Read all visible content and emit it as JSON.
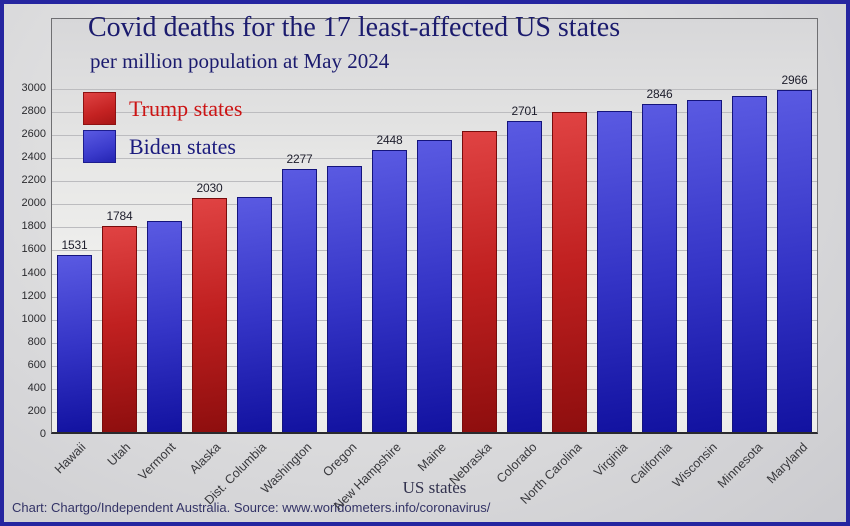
{
  "title": "Covid deaths for the 17 least-affected US states",
  "subtitle": "per million population at May 2024",
  "legend": {
    "trump_label": "Trump states",
    "biden_label": "Biden states",
    "trump_color": "#c42222",
    "biden_color": "#3b3bcc"
  },
  "x_axis_title": "US states",
  "caption": "Chart: Chartgo/Independent Australia. Source: www.worldometers.info/coronavirus/",
  "chart_data": {
    "type": "bar",
    "title": "Covid deaths for the 17 least-affected US states",
    "subtitle": "per million population at May 2024",
    "xlabel": "US states",
    "ylabel": "",
    "ylim": [
      0,
      3000
    ],
    "ytick_step": 200,
    "yticks": [
      0,
      200,
      400,
      600,
      800,
      1000,
      1200,
      1400,
      1600,
      1800,
      2000,
      2200,
      2400,
      2600,
      2800,
      3000
    ],
    "grid": true,
    "legend_position": "top-left-inside",
    "categories": [
      "Hawaii",
      "Utah",
      "Vermont",
      "Alaska",
      "Dist. Columbia",
      "Washington",
      "Oregon",
      "New Hampshire",
      "Maine",
      "Nebraska",
      "Colorado",
      "North Carolina",
      "Virginia",
      "California",
      "Wisconsin",
      "Minnesota",
      "Maryland"
    ],
    "values": [
      1531,
      1784,
      1827,
      2030,
      2039,
      2277,
      2310,
      2448,
      2528,
      2613,
      2701,
      2771,
      2783,
      2846,
      2877,
      2917,
      2966
    ],
    "party": [
      "biden",
      "trump",
      "biden",
      "trump",
      "biden",
      "biden",
      "biden",
      "biden",
      "biden",
      "trump",
      "biden",
      "trump",
      "biden",
      "biden",
      "biden",
      "biden",
      "biden"
    ],
    "value_label_shown": [
      true,
      true,
      false,
      true,
      false,
      true,
      false,
      true,
      false,
      false,
      true,
      false,
      false,
      true,
      false,
      false,
      true
    ],
    "series_note": "bar color by party: trump=red, biden=blue"
  }
}
